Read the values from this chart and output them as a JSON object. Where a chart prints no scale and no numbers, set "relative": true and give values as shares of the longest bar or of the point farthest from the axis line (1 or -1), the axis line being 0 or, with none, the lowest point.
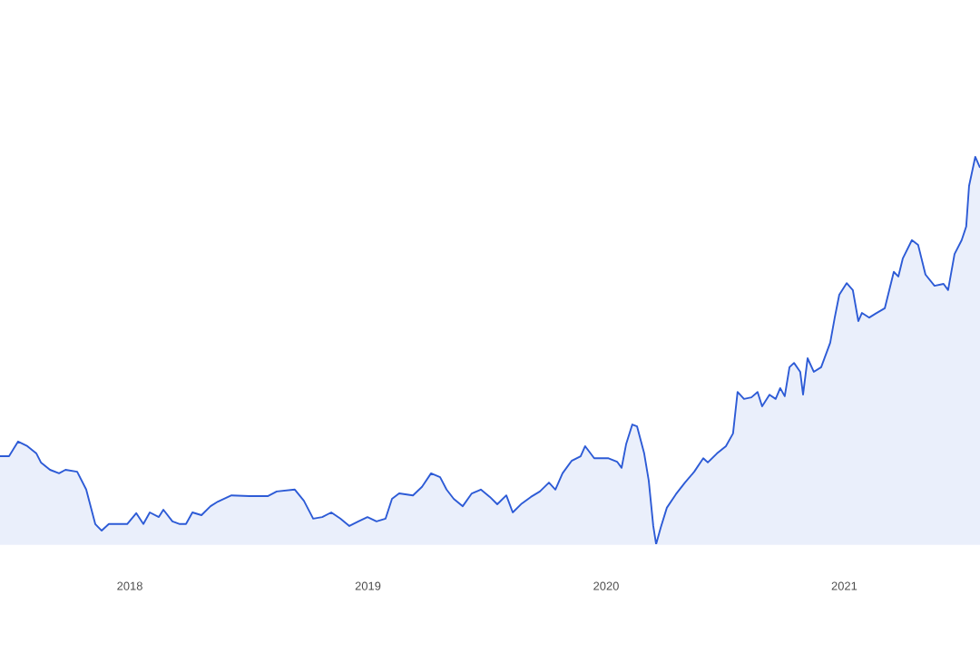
{
  "chart_data": {
    "type": "area",
    "relative": true,
    "color": "#2d5bd6",
    "xlim": [
      2017.455,
      2021.57
    ],
    "xticks": [
      2018,
      2019,
      2020,
      2021
    ],
    "x": [
      2017.455,
      2017.493,
      2017.531,
      2017.57,
      2017.608,
      2017.627,
      2017.665,
      2017.703,
      2017.73,
      2017.779,
      2017.817,
      2017.855,
      2017.882,
      2017.912,
      2017.989,
      2018.027,
      2018.057,
      2018.084,
      2018.122,
      2018.141,
      2018.179,
      2018.21,
      2018.236,
      2018.263,
      2018.301,
      2018.339,
      2018.37,
      2018.427,
      2018.503,
      2018.579,
      2018.617,
      2018.693,
      2018.731,
      2018.77,
      2018.808,
      2018.846,
      2018.884,
      2018.922,
      2018.96,
      2018.998,
      2019.036,
      2019.074,
      2019.101,
      2019.131,
      2019.189,
      2019.227,
      2019.265,
      2019.303,
      2019.33,
      2019.36,
      2019.398,
      2019.436,
      2019.474,
      2019.512,
      2019.543,
      2019.581,
      2019.608,
      2019.646,
      2019.684,
      2019.722,
      2019.76,
      2019.787,
      2019.817,
      2019.855,
      2019.893,
      2019.912,
      2019.95,
      2020.008,
      2020.046,
      2020.065,
      2020.084,
      2020.11,
      2020.13,
      2020.16,
      2020.179,
      2020.198,
      2020.21,
      2020.229,
      2020.255,
      2020.293,
      2020.331,
      2020.37,
      2020.408,
      2020.427,
      2020.465,
      2020.503,
      2020.533,
      2020.552,
      2020.579,
      2020.61,
      2020.636,
      2020.655,
      2020.686,
      2020.712,
      2020.731,
      2020.75,
      2020.77,
      2020.789,
      2020.815,
      2020.827,
      2020.846,
      2020.872,
      2020.903,
      2020.941,
      2020.96,
      2020.979,
      2021.01,
      2021.036,
      2021.059,
      2021.074,
      2021.105,
      2021.131,
      2021.17,
      2021.208,
      2021.227,
      2021.246,
      2021.284,
      2021.31,
      2021.341,
      2021.379,
      2021.417,
      2021.436,
      2021.463,
      2021.493,
      2021.512,
      2021.524,
      2021.55,
      2021.57
    ],
    "values": [
      0.227,
      0.227,
      0.265,
      0.253,
      0.234,
      0.211,
      0.192,
      0.183,
      0.192,
      0.187,
      0.141,
      0.052,
      0.035,
      0.052,
      0.052,
      0.08,
      0.052,
      0.082,
      0.07,
      0.089,
      0.059,
      0.052,
      0.052,
      0.082,
      0.075,
      0.098,
      0.11,
      0.126,
      0.124,
      0.124,
      0.136,
      0.141,
      0.112,
      0.066,
      0.07,
      0.082,
      0.066,
      0.047,
      0.059,
      0.07,
      0.059,
      0.066,
      0.117,
      0.131,
      0.126,
      0.148,
      0.183,
      0.173,
      0.141,
      0.117,
      0.098,
      0.131,
      0.141,
      0.122,
      0.103,
      0.126,
      0.082,
      0.105,
      0.122,
      0.136,
      0.159,
      0.141,
      0.183,
      0.215,
      0.227,
      0.253,
      0.222,
      0.222,
      0.213,
      0.197,
      0.258,
      0.309,
      0.304,
      0.234,
      0.164,
      0.047,
      0,
      0.042,
      0.094,
      0.129,
      0.159,
      0.187,
      0.222,
      0.211,
      0.234,
      0.253,
      0.286,
      0.393,
      0.375,
      0.379,
      0.393,
      0.356,
      0.386,
      0.375,
      0.403,
      0.382,
      0.457,
      0.468,
      0.445,
      0.386,
      0.48,
      0.445,
      0.457,
      0.52,
      0.585,
      0.644,
      0.674,
      0.656,
      0.576,
      0.597,
      0.585,
      0.595,
      0.609,
      0.703,
      0.691,
      0.738,
      0.785,
      0.773,
      0.696,
      0.667,
      0.672,
      0.656,
      0.749,
      0.785,
      0.82,
      0.925,
      1,
      0.972
    ]
  }
}
